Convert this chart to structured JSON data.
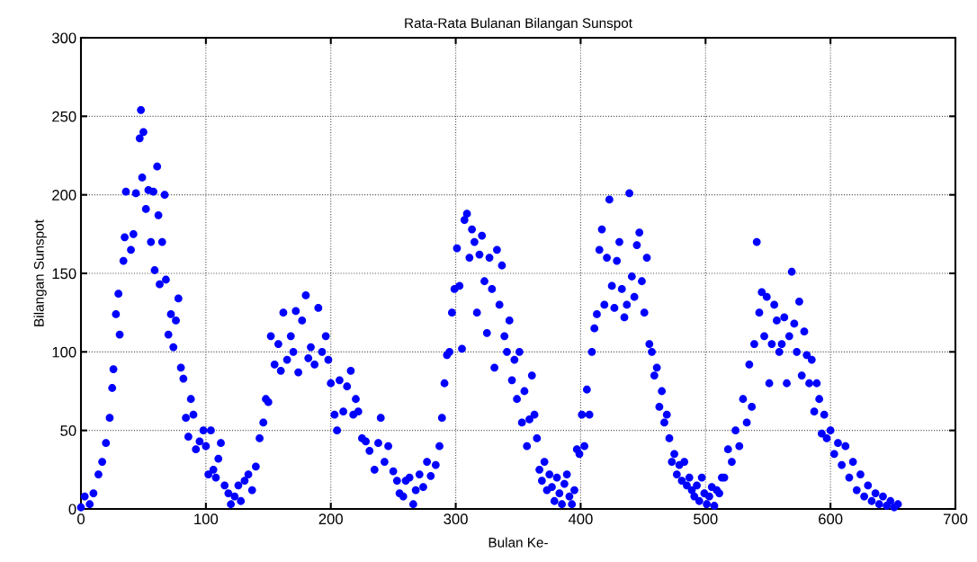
{
  "chart_data": {
    "type": "scatter",
    "title": "Rata-Rata Bulanan Bilangan Sunspot",
    "xlabel": "Bulan Ke-",
    "ylabel": "Bilangan Sunspot",
    "xlim": [
      0,
      700
    ],
    "ylim": [
      0,
      300
    ],
    "xticks": [
      0,
      100,
      200,
      300,
      400,
      500,
      600,
      700
    ],
    "yticks": [
      0,
      50,
      100,
      150,
      200,
      250,
      300
    ],
    "grid": true,
    "marker": "circle",
    "series": [
      {
        "color": "#0000ff",
        "x": [
          0,
          3,
          7,
          10,
          14,
          17,
          20,
          23,
          25,
          26,
          28,
          30,
          31,
          34,
          35,
          36,
          40,
          42,
          44,
          47,
          48,
          49,
          50,
          52,
          54,
          56,
          58,
          59,
          61,
          62,
          63,
          65,
          67,
          68,
          70,
          72,
          74,
          76,
          78,
          80,
          82,
          84,
          86,
          88,
          90,
          92,
          95,
          98,
          100,
          102,
          104,
          106,
          108,
          110,
          112,
          115,
          118,
          120,
          123,
          126,
          128,
          131,
          134,
          137,
          140,
          143,
          146,
          148,
          150,
          152,
          155,
          158,
          160,
          162,
          165,
          168,
          170,
          172,
          174,
          177,
          180,
          182,
          184,
          187,
          190,
          193,
          196,
          198,
          200,
          203,
          205,
          207,
          210,
          213,
          216,
          218,
          220,
          222,
          225,
          228,
          231,
          235,
          238,
          240,
          243,
          246,
          250,
          253,
          255,
          258,
          260,
          263,
          266,
          268,
          271,
          274,
          277,
          280,
          284,
          287,
          289,
          291,
          293,
          295,
          297,
          299,
          301,
          303,
          305,
          307,
          309,
          311,
          313,
          315,
          317,
          319,
          321,
          323,
          325,
          327,
          329,
          331,
          333,
          335,
          337,
          339,
          341,
          343,
          345,
          347,
          349,
          351,
          353,
          355,
          357,
          359,
          361,
          363,
          365,
          367,
          369,
          371,
          373,
          375,
          377,
          379,
          381,
          383,
          385,
          387,
          389,
          391,
          393,
          395,
          397,
          399,
          401,
          403,
          405,
          407,
          409,
          411,
          413,
          415,
          417,
          419,
          421,
          423,
          425,
          427,
          429,
          431,
          433,
          435,
          437,
          439,
          441,
          443,
          445,
          447,
          449,
          451,
          453,
          455,
          457,
          459,
          461,
          463,
          465,
          467,
          469,
          471,
          473,
          475,
          477,
          479,
          481,
          483,
          485,
          487,
          489,
          491,
          493,
          495,
          497,
          499,
          501,
          503,
          505,
          507,
          509,
          511,
          513,
          515,
          518,
          521,
          524,
          527,
          530,
          533,
          535,
          537,
          539,
          541,
          543,
          545,
          547,
          549,
          551,
          553,
          555,
          557,
          559,
          561,
          563,
          565,
          567,
          569,
          571,
          573,
          575,
          577,
          579,
          581,
          583,
          585,
          587,
          589,
          591,
          593,
          595,
          597,
          600,
          603,
          606,
          609,
          612,
          615,
          618,
          621,
          624,
          627,
          630,
          633,
          636,
          639,
          642,
          645,
          648,
          651,
          654
        ],
        "values": [
          1,
          8,
          3,
          10,
          22,
          30,
          42,
          58,
          77,
          89,
          124,
          137,
          111,
          158,
          173,
          202,
          165,
          175,
          201,
          236,
          254,
          211,
          240,
          191,
          203,
          170,
          202,
          152,
          218,
          187,
          143,
          170,
          200,
          146,
          111,
          124,
          103,
          120,
          134,
          90,
          83,
          58,
          46,
          70,
          60,
          38,
          43,
          50,
          40,
          22,
          50,
          25,
          20,
          32,
          42,
          15,
          10,
          3,
          8,
          15,
          5,
          18,
          22,
          12,
          27,
          45,
          55,
          70,
          68,
          110,
          92,
          105,
          88,
          125,
          95,
          110,
          100,
          126,
          87,
          120,
          136,
          96,
          103,
          92,
          128,
          100,
          110,
          95,
          80,
          60,
          50,
          82,
          62,
          78,
          88,
          60,
          70,
          62,
          45,
          43,
          37,
          25,
          42,
          58,
          30,
          40,
          24,
          18,
          10,
          8,
          18,
          20,
          3,
          12,
          22,
          14,
          30,
          21,
          28,
          40,
          58,
          80,
          98,
          100,
          125,
          140,
          166,
          142,
          102,
          184,
          188,
          160,
          178,
          170,
          125,
          162,
          174,
          145,
          112,
          160,
          140,
          90,
          165,
          130,
          155,
          110,
          100,
          120,
          82,
          95,
          70,
          100,
          55,
          75,
          40,
          57,
          85,
          60,
          45,
          25,
          18,
          30,
          12,
          22,
          14,
          5,
          20,
          10,
          3,
          16,
          22,
          8,
          3,
          12,
          38,
          35,
          60,
          40,
          76,
          60,
          100,
          115,
          124,
          165,
          178,
          130,
          160,
          197,
          142,
          128,
          158,
          170,
          140,
          122,
          130,
          201,
          148,
          135,
          168,
          176,
          145,
          125,
          160,
          105,
          100,
          85,
          90,
          65,
          75,
          55,
          60,
          45,
          30,
          35,
          22,
          28,
          18,
          30,
          15,
          20,
          12,
          8,
          15,
          5,
          20,
          10,
          3,
          8,
          14,
          2,
          12,
          10,
          20,
          20,
          38,
          30,
          50,
          40,
          70,
          55,
          92,
          65,
          105,
          170,
          125,
          138,
          110,
          135,
          80,
          105,
          130,
          120,
          100,
          105,
          122,
          80,
          110,
          151,
          118,
          100,
          132,
          85,
          113,
          98,
          80,
          95,
          62,
          80,
          70,
          48,
          60,
          45,
          50,
          35,
          42,
          28,
          40,
          20,
          30,
          12,
          22,
          8,
          15,
          5,
          10,
          3,
          8,
          2,
          5,
          1,
          3
        ]
      }
    ]
  }
}
